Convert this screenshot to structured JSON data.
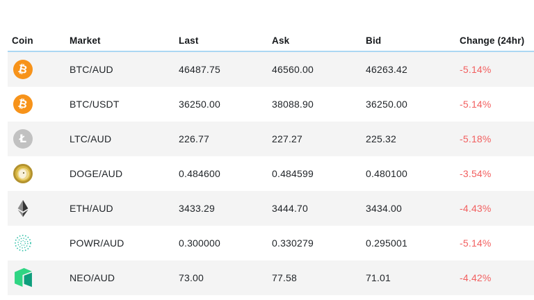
{
  "table": {
    "headers": [
      {
        "label": "Coin"
      },
      {
        "label": "Market"
      },
      {
        "label": "Last"
      },
      {
        "label": "Ask"
      },
      {
        "label": "Bid"
      },
      {
        "label": "Change (24hr)"
      }
    ],
    "rows": [
      {
        "icon_type": "btc",
        "coin_icon": "bitcoin-icon",
        "market": "BTC/AUD",
        "last": "46487.75",
        "ask": "46560.00",
        "bid": "46263.42",
        "change": "-5.14%"
      },
      {
        "icon_type": "btc",
        "coin_icon": "bitcoin-icon",
        "market": "BTC/USDT",
        "last": "36250.00",
        "ask": "38088.90",
        "bid": "36250.00",
        "change": "-5.14%"
      },
      {
        "icon_type": "ltc",
        "coin_icon": "litecoin-icon",
        "market": "LTC/AUD",
        "last": "226.77",
        "ask": "227.27",
        "bid": "225.32",
        "change": "-5.18%"
      },
      {
        "icon_type": "doge",
        "coin_icon": "dogecoin-icon",
        "market": "DOGE/AUD",
        "last": "0.484600",
        "ask": "0.484599",
        "bid": "0.480100",
        "change": "-3.54%"
      },
      {
        "icon_type": "eth",
        "coin_icon": "ethereum-icon",
        "market": "ETH/AUD",
        "last": "3433.29",
        "ask": "3444.70",
        "bid": "3434.00",
        "change": "-4.43%"
      },
      {
        "icon_type": "powr",
        "coin_icon": "power-ledger-icon",
        "market": "POWR/AUD",
        "last": "0.300000",
        "ask": "0.330279",
        "bid": "0.295001",
        "change": "-5.14%"
      },
      {
        "icon_type": "neo",
        "coin_icon": "neo-icon",
        "market": "NEO/AUD",
        "last": "73.00",
        "ask": "77.58",
        "bid": "71.01",
        "change": "-4.42%"
      }
    ],
    "icon_glyphs": {
      "btc": "₿",
      "ltc": "Ł"
    },
    "colors": {
      "negative_change": "#f25f5f",
      "header_underline": "#abd7f3",
      "row_shade": "#f4f4f4",
      "btc_orange": "#f7931a",
      "ltc_silver": "#c1c1c1",
      "doge_gold": "#d9b845",
      "eth_dark": "#343434",
      "powr_teal": "#38c2ab",
      "neo_light": "#2fd583",
      "neo_dark": "#0e9e7c"
    }
  }
}
